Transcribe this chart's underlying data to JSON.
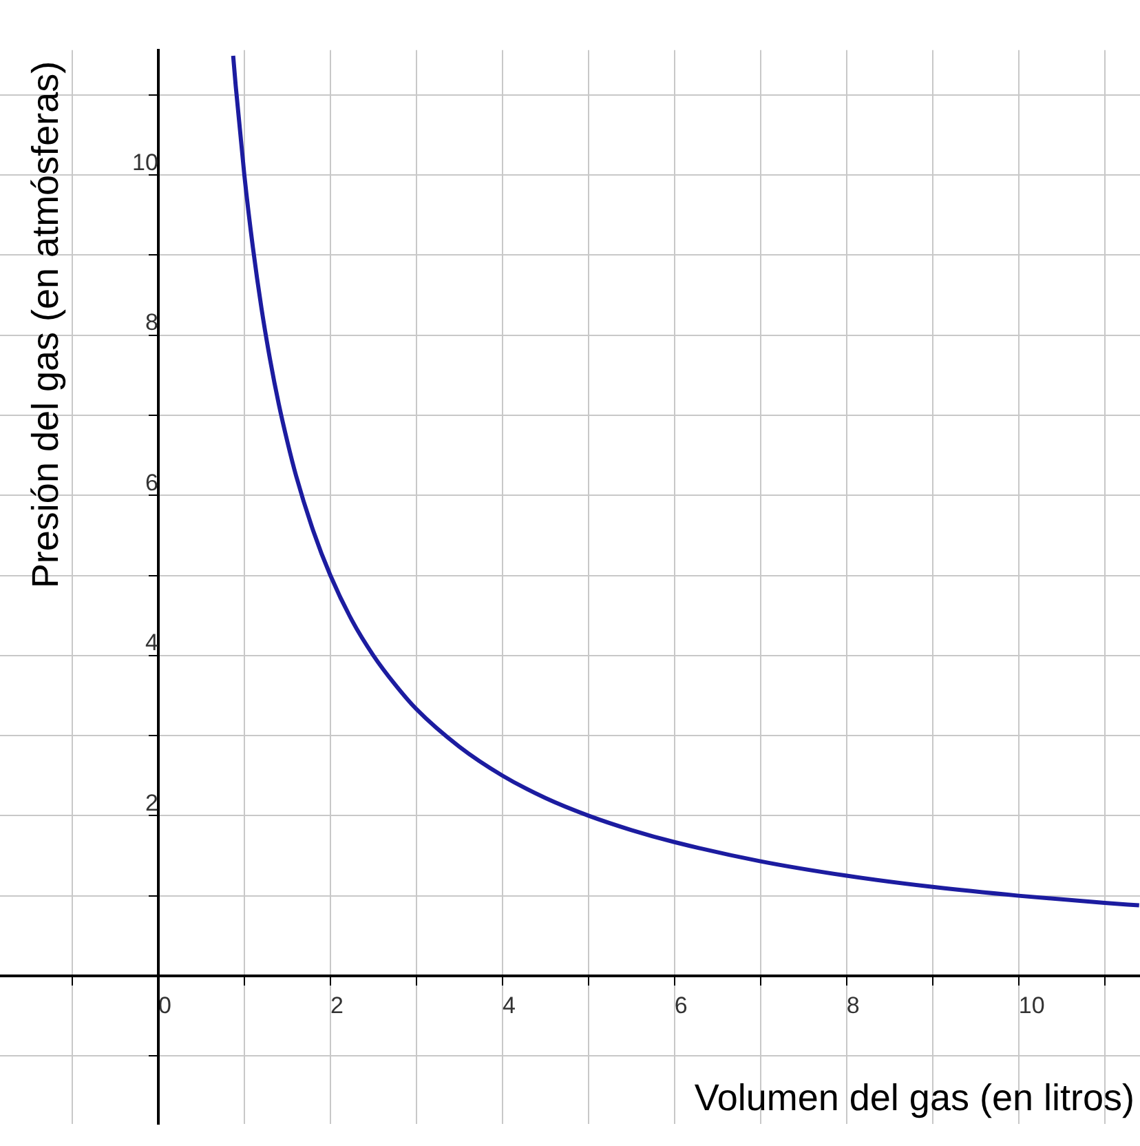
{
  "chart_data": {
    "type": "line",
    "xlabel": "Volumen del gas (en litros)",
    "ylabel": "Presión del gas (en atmósferas)",
    "xlim": [
      -1.84,
      11.41
    ],
    "ylim": [
      -1.85,
      11.56
    ],
    "xticks": [
      {
        "value": -1,
        "label": null
      },
      {
        "value": 0,
        "label": "0"
      },
      {
        "value": 1,
        "label": null
      },
      2,
      {
        "value": 3,
        "label": null
      },
      4,
      {
        "value": 5,
        "label": null
      },
      6,
      {
        "value": 7,
        "label": null
      },
      8,
      {
        "value": 9,
        "label": null
      },
      10,
      {
        "value": 11,
        "label": null
      }
    ],
    "yticks": [
      {
        "value": -1,
        "label": null
      },
      {
        "value": 0,
        "label": null
      },
      {
        "value": 1,
        "label": null
      },
      2,
      {
        "value": 3,
        "label": null
      },
      4,
      {
        "value": 5,
        "label": null
      },
      6,
      {
        "value": 7,
        "label": null
      },
      8,
      {
        "value": 9,
        "label": null
      },
      10,
      {
        "value": 11,
        "label": null
      }
    ],
    "grid": true,
    "marker": "none",
    "line_style": "solid",
    "series": [
      {
        "color": "#1c1ca0",
        "x": [
          0.87,
          0.9,
          1,
          1.1,
          1.2,
          1.3,
          1.4,
          1.5,
          1.6,
          1.8,
          2,
          2.25,
          2.5,
          2.75,
          3,
          3.5,
          4,
          4.5,
          5,
          5.5,
          6,
          7,
          8,
          9,
          10,
          11,
          11.4
        ],
        "values": [
          11.49,
          11.11,
          10,
          9.09,
          8.33,
          7.69,
          7.14,
          6.67,
          6.25,
          5.56,
          5,
          4.44,
          4,
          3.64,
          3.33,
          2.86,
          2.5,
          2.22,
          2,
          1.82,
          1.67,
          1.43,
          1.25,
          1.11,
          1,
          0.91,
          0.88
        ]
      }
    ]
  }
}
